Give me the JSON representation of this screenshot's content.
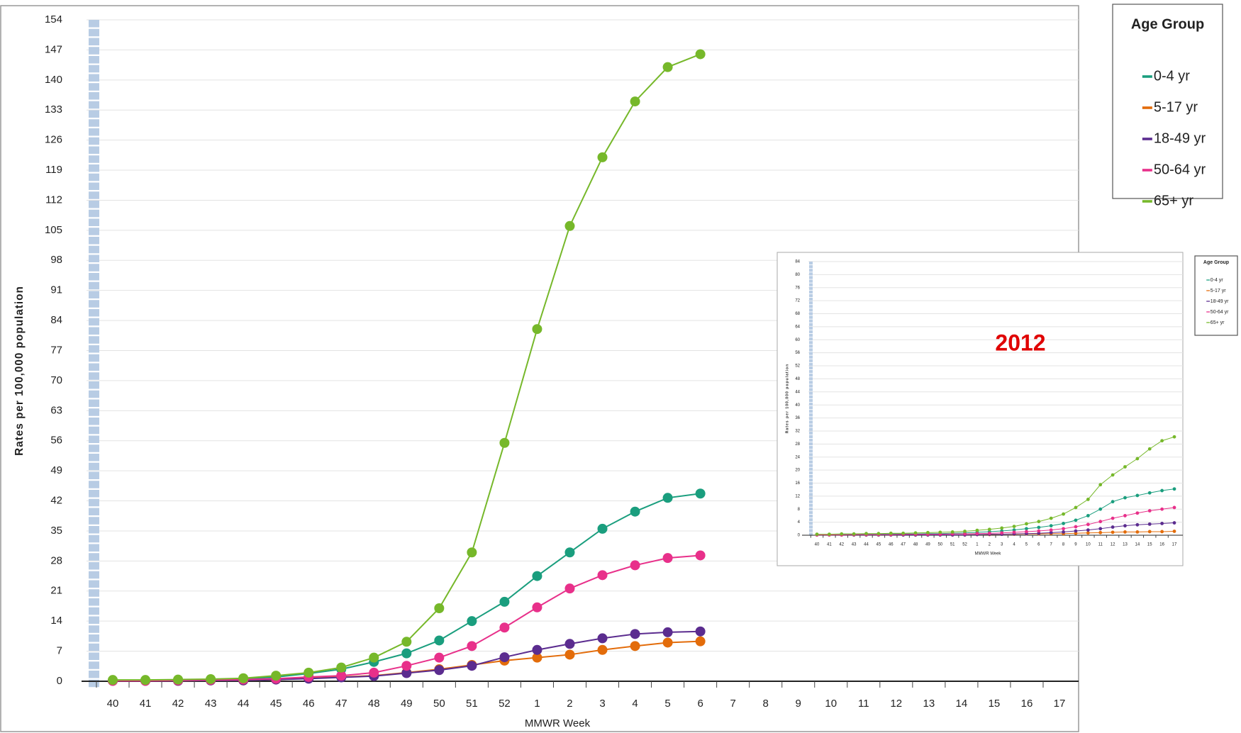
{
  "chart_data": [
    {
      "type": "line",
      "x_label": "MMWR Week",
      "y_label": "Rates per 100,000 population",
      "legend_title": "Age Group",
      "grid": true,
      "categories": [
        "40",
        "41",
        "42",
        "43",
        "44",
        "45",
        "46",
        "47",
        "48",
        "49",
        "50",
        "51",
        "52",
        "1",
        "2",
        "3",
        "4",
        "5",
        "6",
        "7",
        "8",
        "9",
        "10",
        "11",
        "12",
        "13",
        "14",
        "15",
        "16",
        "17"
      ],
      "ylim": [
        0,
        154
      ],
      "yticks": [
        0,
        7,
        14,
        21,
        28,
        35,
        42,
        49,
        56,
        63,
        70,
        77,
        84,
        91,
        98,
        105,
        112,
        119,
        126,
        133,
        140,
        147,
        154
      ],
      "series": [
        {
          "name": "0-4 yr",
          "color": "#1a9e7e",
          "values": [
            0.2,
            0.2,
            0.3,
            0.4,
            0.5,
            1.0,
            1.8,
            2.8,
            4.5,
            6.5,
            9.5,
            14,
            18.5,
            24.5,
            30,
            35.5,
            39.5,
            42.7,
            43.7,
            null,
            null,
            null,
            null,
            null,
            null,
            null,
            null,
            null,
            null,
            null
          ]
        },
        {
          "name": "5-17 yr",
          "color": "#e36c0a",
          "values": [
            0.1,
            0.1,
            0.1,
            0.2,
            0.2,
            0.4,
            0.7,
            1.0,
            1.3,
            2.0,
            2.8,
            3.8,
            4.8,
            5.5,
            6.2,
            7.3,
            8.2,
            9.0,
            9.3,
            null,
            null,
            null,
            null,
            null,
            null,
            null,
            null,
            null,
            null,
            null
          ]
        },
        {
          "name": "18-49 yr",
          "color": "#5b2c8f",
          "values": [
            0.1,
            0.1,
            0.1,
            0.2,
            0.2,
            0.4,
            0.6,
            0.9,
            1.2,
            1.9,
            2.6,
            3.6,
            5.6,
            7.3,
            8.7,
            10,
            11,
            11.4,
            11.6,
            null,
            null,
            null,
            null,
            null,
            null,
            null,
            null,
            null,
            null,
            null
          ]
        },
        {
          "name": "50-64 yr",
          "color": "#e8308a",
          "values": [
            0.1,
            0.1,
            0.2,
            0.3,
            0.4,
            0.6,
            1.0,
            1.3,
            2.0,
            3.6,
            5.5,
            8.2,
            12.5,
            17.2,
            21.6,
            24.7,
            27,
            28.7,
            29.3,
            null,
            null,
            null,
            null,
            null,
            null,
            null,
            null,
            null,
            null,
            null
          ]
        },
        {
          "name": "65+ yr",
          "color": "#76b82a",
          "values": [
            0.3,
            0.3,
            0.4,
            0.5,
            0.7,
            1.3,
            2.0,
            3.2,
            5.5,
            9.2,
            17,
            30,
            55.5,
            82,
            106,
            122,
            135,
            143,
            146,
            null,
            null,
            null,
            null,
            null,
            null,
            null,
            null,
            null,
            null,
            null
          ]
        }
      ]
    },
    {
      "type": "line",
      "annotation": "2012",
      "x_label": "MMWR Week",
      "y_label": "Rates per 100,000 population",
      "legend_title": "Age Group",
      "grid": true,
      "categories": [
        "40",
        "41",
        "42",
        "43",
        "44",
        "45",
        "46",
        "47",
        "48",
        "49",
        "50",
        "51",
        "52",
        "1",
        "2",
        "3",
        "4",
        "5",
        "6",
        "7",
        "8",
        "9",
        "10",
        "11",
        "12",
        "13",
        "14",
        "15",
        "16",
        "17"
      ],
      "ylim": [
        0,
        84
      ],
      "yticks": [
        0,
        4,
        8,
        12,
        16,
        20,
        24,
        28,
        32,
        36,
        40,
        44,
        48,
        52,
        56,
        60,
        64,
        68,
        72,
        76,
        80,
        84
      ],
      "series": [
        {
          "name": "0-4 yr",
          "color": "#1a9e7e",
          "values": [
            0.2,
            0.2,
            0.2,
            0.3,
            0.3,
            0.3,
            0.4,
            0.4,
            0.4,
            0.5,
            0.5,
            0.6,
            0.7,
            0.9,
            1.1,
            1.3,
            1.6,
            2.0,
            2.4,
            2.9,
            3.6,
            4.6,
            6,
            8,
            10.3,
            11.5,
            12.2,
            13,
            13.7,
            14.2
          ]
        },
        {
          "name": "5-17 yr",
          "color": "#e36c0a",
          "values": [
            0.1,
            0.1,
            0.1,
            0.1,
            0.1,
            0.1,
            0.1,
            0.1,
            0.1,
            0.1,
            0.1,
            0.1,
            0.1,
            0.2,
            0.2,
            0.3,
            0.3,
            0.4,
            0.4,
            0.5,
            0.5,
            0.6,
            0.7,
            0.8,
            0.9,
            1.0,
            1.0,
            1.1,
            1.1,
            1.2
          ]
        },
        {
          "name": "18-49 yr",
          "color": "#5b2c8f",
          "values": [
            0.1,
            0.1,
            0.1,
            0.1,
            0.1,
            0.1,
            0.1,
            0.1,
            0.1,
            0.1,
            0.1,
            0.1,
            0.1,
            0.2,
            0.3,
            0.3,
            0.4,
            0.5,
            0.6,
            0.8,
            1.0,
            1.3,
            1.6,
            2.0,
            2.5,
            2.9,
            3.2,
            3.4,
            3.6,
            3.8
          ]
        },
        {
          "name": "50-64 yr",
          "color": "#e8308a",
          "values": [
            0.1,
            0.1,
            0.1,
            0.2,
            0.2,
            0.2,
            0.2,
            0.3,
            0.3,
            0.3,
            0.3,
            0.4,
            0.4,
            0.5,
            0.6,
            0.7,
            0.9,
            1.1,
            1.3,
            1.6,
            2.0,
            2.6,
            3.3,
            4.2,
            5.2,
            6,
            6.8,
            7.5,
            8,
            8.5
          ]
        },
        {
          "name": "65+ yr",
          "color": "#76b82a",
          "values": [
            0.3,
            0.3,
            0.4,
            0.4,
            0.5,
            0.5,
            0.6,
            0.6,
            0.7,
            0.8,
            0.9,
            1.0,
            1.2,
            1.5,
            1.8,
            2.2,
            2.7,
            3.5,
            4.2,
            5.2,
            6.5,
            8.5,
            11,
            15.5,
            18.5,
            21,
            23.5,
            26.5,
            29,
            30.2
          ]
        }
      ]
    }
  ]
}
